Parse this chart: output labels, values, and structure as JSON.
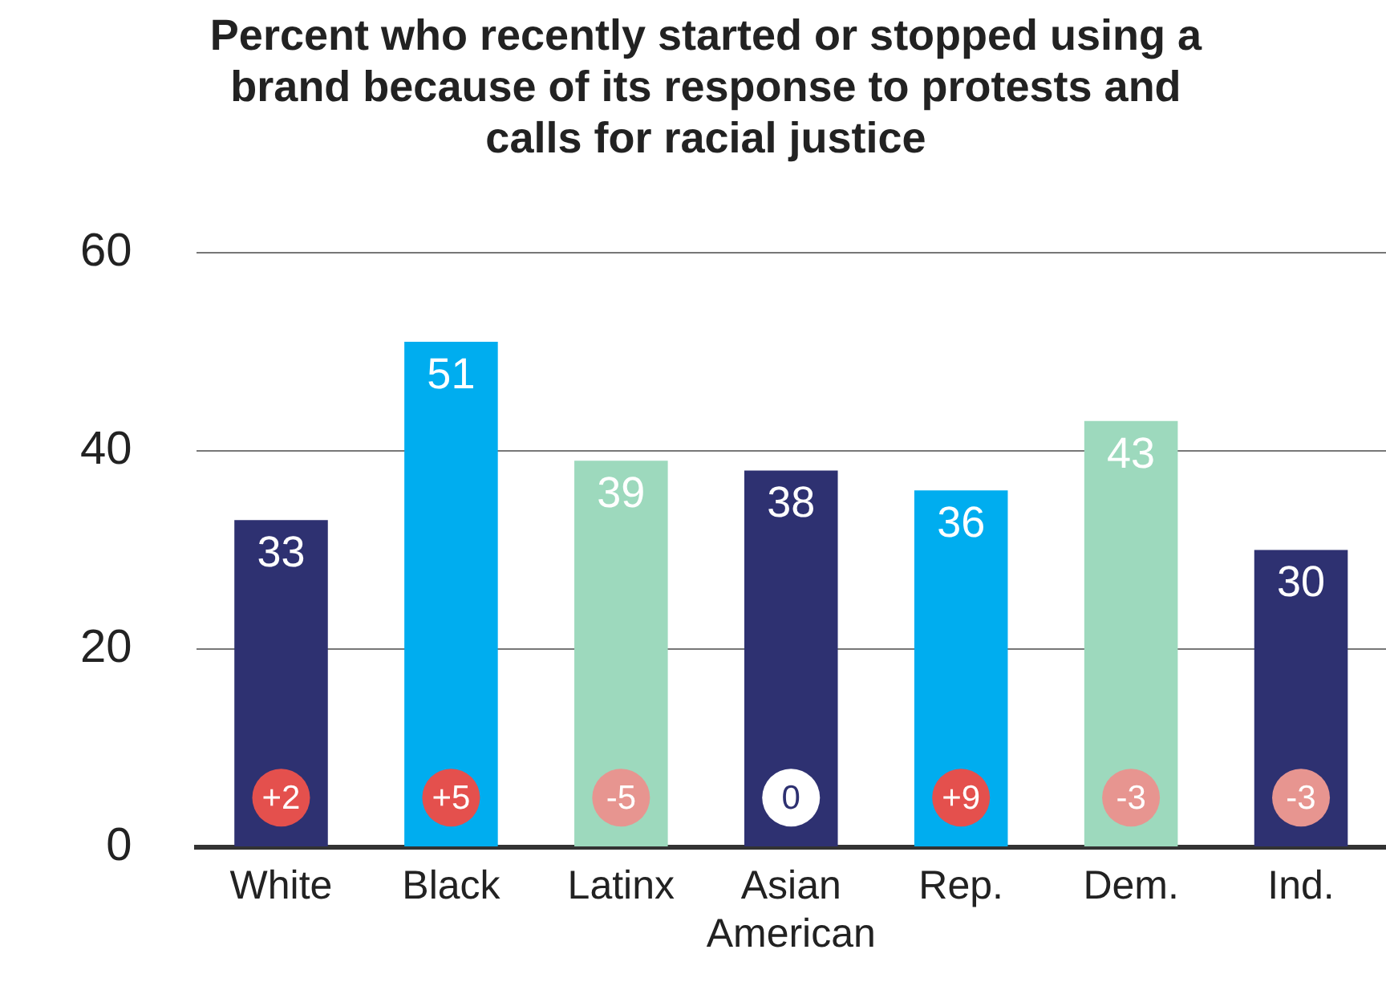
{
  "chart_data": {
    "type": "bar",
    "title": "Percent who recently started or stopped using a brand because of its response to protests and calls for racial justice",
    "categories": [
      "White",
      "Black",
      "Latinx",
      "Asian American",
      "Rep.",
      "Dem.",
      "Ind."
    ],
    "values": [
      33,
      51,
      39,
      38,
      36,
      43,
      30
    ],
    "colors": [
      "#2e3171",
      "#00adef",
      "#9dd9bd",
      "#2e3171",
      "#00adef",
      "#9dd9bd",
      "#2e3171"
    ],
    "ylim": [
      0,
      60
    ],
    "yticks": [
      0,
      20,
      40,
      60
    ],
    "grid": "y",
    "legend": false,
    "data_labels": true,
    "annotations": [
      {
        "text": "+2",
        "x": "White",
        "y": 5
      },
      {
        "text": "+5",
        "x": "Black",
        "y": 5
      },
      {
        "text": "-5",
        "x": "Latinx",
        "y": 5
      },
      {
        "text": "0",
        "x": "Asian American",
        "y": 5
      },
      {
        "text": "+9",
        "x": "Rep.",
        "y": 5
      },
      {
        "text": "-3",
        "x": "Dem.",
        "y": 5
      },
      {
        "text": "-3",
        "x": "Ind.",
        "y": 5
      }
    ]
  }
}
